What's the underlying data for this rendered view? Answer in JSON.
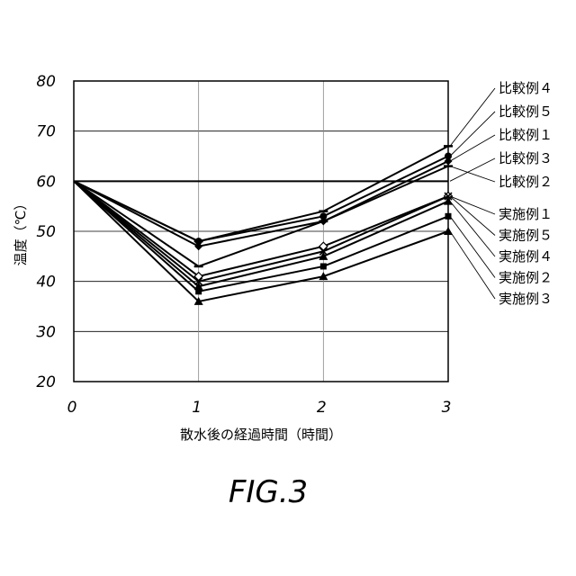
{
  "chart_data": {
    "type": "line",
    "title": "",
    "xlabel": "散水後の経過時間（時間）",
    "ylabel": "温度（℃）",
    "x": [
      0,
      1,
      2,
      3
    ],
    "xlim": [
      0,
      3
    ],
    "ylim": [
      20,
      80
    ],
    "x_ticks": [
      "0",
      "1",
      "2",
      "3"
    ],
    "y_ticks": [
      "20",
      "30",
      "40",
      "50",
      "60",
      "70",
      "80"
    ],
    "grid": true,
    "legend_placement": "right",
    "series": [
      {
        "name": "比較例４",
        "values": [
          60,
          48,
          54,
          67
        ],
        "marker": "dash"
      },
      {
        "name": "比較例５",
        "values": [
          60,
          48,
          53,
          65
        ],
        "marker": "circle"
      },
      {
        "name": "比較例１",
        "values": [
          60,
          47,
          52,
          64
        ],
        "marker": "diamond"
      },
      {
        "name": "比較例３",
        "values": [
          60,
          60,
          60,
          60
        ],
        "marker": "none"
      },
      {
        "name": "比較例２",
        "values": [
          60,
          43,
          52,
          63
        ],
        "marker": "dash"
      },
      {
        "name": "実施例１",
        "values": [
          60,
          41,
          47,
          57
        ],
        "marker": "diamond-open"
      },
      {
        "name": "実施例５",
        "values": [
          60,
          40,
          46,
          57
        ],
        "marker": "x"
      },
      {
        "name": "実施例４",
        "values": [
          60,
          39,
          45,
          56
        ],
        "marker": "triangle"
      },
      {
        "name": "実施例２",
        "values": [
          60,
          38,
          43,
          53
        ],
        "marker": "square"
      },
      {
        "name": "実施例３",
        "values": [
          60,
          36,
          41,
          50
        ],
        "marker": "triangle"
      }
    ]
  },
  "figure_label": "FIG.3"
}
